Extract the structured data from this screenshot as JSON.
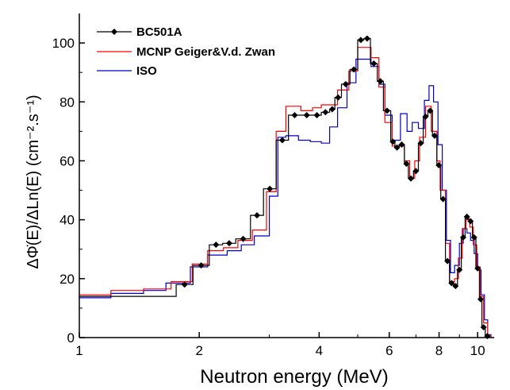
{
  "chart_data": {
    "type": "line",
    "title": "",
    "xlabel": "Neutron energy (MeV)",
    "ylabel": "ΔΦ̇(E)/ΔLn(E) (cm⁻².s⁻¹)",
    "x_scale": "log",
    "xlim": [
      1,
      11
    ],
    "ylim": [
      0,
      110
    ],
    "x_ticks": [
      1,
      2,
      4,
      6,
      8,
      10
    ],
    "y_ticks": [
      0,
      20,
      40,
      60,
      80,
      100
    ],
    "x_tick_labels": [
      "1",
      "2",
      "4",
      "6",
      "8",
      "10"
    ],
    "y_tick_labels": [
      "0",
      "20",
      "40",
      "60",
      "80",
      "100"
    ],
    "legend_position": "top-left",
    "series": [
      {
        "name": "BC501A",
        "color": "#000000",
        "style": "step-with-diamond-markers",
        "points": [
          [
            1.75,
            18
          ],
          [
            1.93,
            24.5
          ],
          [
            2.12,
            31.5
          ],
          [
            2.29,
            32
          ],
          [
            2.47,
            33.5
          ],
          [
            2.69,
            41.5
          ],
          [
            2.9,
            50.5
          ],
          [
            3.12,
            67
          ],
          [
            3.35,
            75.5
          ],
          [
            3.6,
            75.5
          ],
          [
            3.85,
            75.5
          ],
          [
            4.05,
            76.5
          ],
          [
            4.25,
            77.5
          ],
          [
            4.38,
            81.5
          ],
          [
            4.55,
            86
          ],
          [
            4.78,
            91
          ],
          [
            5.0,
            101
          ],
          [
            5.18,
            101.5
          ],
          [
            5.38,
            93
          ],
          [
            5.6,
            87
          ],
          [
            5.8,
            77
          ],
          [
            6.05,
            66.5
          ],
          [
            6.2,
            64.5
          ],
          [
            6.35,
            65.5
          ],
          [
            6.55,
            59
          ],
          [
            6.7,
            54
          ],
          [
            6.9,
            56.5
          ],
          [
            7.1,
            66
          ],
          [
            7.3,
            75
          ],
          [
            7.5,
            77
          ],
          [
            7.7,
            68.5
          ],
          [
            7.9,
            58.5
          ],
          [
            8.08,
            47
          ],
          [
            8.3,
            26
          ],
          [
            8.5,
            18.5
          ],
          [
            8.7,
            17.5
          ],
          [
            8.9,
            23
          ],
          [
            9.1,
            34
          ],
          [
            9.3,
            41
          ],
          [
            9.5,
            39.5
          ],
          [
            9.7,
            34
          ],
          [
            9.9,
            23.5
          ],
          [
            10.1,
            13
          ],
          [
            10.25,
            3.5
          ],
          [
            10.45,
            0.5
          ]
        ],
        "steps": [
          [
            1.0,
            14
          ],
          [
            1.75,
            18
          ],
          [
            1.93,
            24.5
          ],
          [
            2.12,
            31.5
          ],
          [
            2.29,
            32
          ],
          [
            2.47,
            33.5
          ],
          [
            2.69,
            41.5
          ],
          [
            2.9,
            50.5
          ],
          [
            3.12,
            67
          ],
          [
            3.35,
            75.5
          ],
          [
            3.6,
            75.5
          ],
          [
            3.85,
            75.5
          ],
          [
            4.05,
            76.5
          ],
          [
            4.25,
            77.5
          ],
          [
            4.38,
            81.5
          ],
          [
            4.55,
            86
          ],
          [
            4.78,
            91
          ],
          [
            5.0,
            101
          ],
          [
            5.18,
            101.5
          ],
          [
            5.38,
            93
          ],
          [
            5.6,
            87
          ],
          [
            5.8,
            77
          ],
          [
            6.05,
            66.5
          ],
          [
            6.2,
            64.5
          ],
          [
            6.35,
            65.5
          ],
          [
            6.55,
            59
          ],
          [
            6.7,
            54
          ],
          [
            6.9,
            56.5
          ],
          [
            7.1,
            66
          ],
          [
            7.3,
            75
          ],
          [
            7.5,
            77
          ],
          [
            7.7,
            68.5
          ],
          [
            7.9,
            58.5
          ],
          [
            8.08,
            47
          ],
          [
            8.3,
            26
          ],
          [
            8.5,
            18.5
          ],
          [
            8.7,
            17.5
          ],
          [
            8.9,
            23
          ],
          [
            9.1,
            34
          ],
          [
            9.3,
            41
          ],
          [
            9.5,
            39.5
          ],
          [
            9.7,
            34
          ],
          [
            9.9,
            23.5
          ],
          [
            10.1,
            13
          ],
          [
            10.25,
            3.5
          ],
          [
            10.45,
            0.5
          ],
          [
            10.7,
            0
          ]
        ]
      },
      {
        "name": "MCNP Geiger&V.d. Zwan",
        "color": "#ff0000",
        "style": "step",
        "steps": [
          [
            1.0,
            14.5
          ],
          [
            1.2,
            16
          ],
          [
            1.45,
            16.5
          ],
          [
            1.7,
            19
          ],
          [
            1.92,
            25
          ],
          [
            2.1,
            29.5
          ],
          [
            2.3,
            30.5
          ],
          [
            2.5,
            33
          ],
          [
            2.72,
            36.5
          ],
          [
            2.95,
            49.5
          ],
          [
            3.12,
            70
          ],
          [
            3.3,
            78.5
          ],
          [
            3.6,
            77
          ],
          [
            3.85,
            78
          ],
          [
            4.05,
            79
          ],
          [
            4.25,
            79
          ],
          [
            4.45,
            84
          ],
          [
            4.75,
            90.5
          ],
          [
            5.0,
            98.5
          ],
          [
            5.4,
            95
          ],
          [
            5.65,
            85
          ],
          [
            5.85,
            73
          ],
          [
            6.1,
            65
          ],
          [
            6.35,
            65
          ],
          [
            6.55,
            60
          ],
          [
            6.75,
            54
          ],
          [
            6.95,
            60
          ],
          [
            7.15,
            68
          ],
          [
            7.4,
            78.5
          ],
          [
            7.65,
            70
          ],
          [
            7.9,
            60
          ],
          [
            8.05,
            50
          ],
          [
            8.3,
            32
          ],
          [
            8.5,
            19
          ],
          [
            8.75,
            20
          ],
          [
            8.95,
            27
          ],
          [
            9.15,
            37
          ],
          [
            9.35,
            40
          ],
          [
            9.55,
            37.5
          ],
          [
            9.75,
            31.5
          ],
          [
            9.95,
            24
          ],
          [
            10.15,
            14
          ],
          [
            10.35,
            5
          ],
          [
            10.6,
            0.5
          ],
          [
            10.8,
            0
          ]
        ]
      },
      {
        "name": "ISO",
        "color": "#0000cc",
        "style": "step",
        "steps": [
          [
            1.0,
            13.5
          ],
          [
            1.2,
            15
          ],
          [
            1.45,
            16
          ],
          [
            1.65,
            18.5
          ],
          [
            1.9,
            24
          ],
          [
            2.1,
            28
          ],
          [
            2.35,
            29.5
          ],
          [
            2.55,
            31.5
          ],
          [
            2.75,
            34.5
          ],
          [
            3.0,
            48
          ],
          [
            3.15,
            68
          ],
          [
            3.3,
            68.5
          ],
          [
            3.55,
            67
          ],
          [
            3.8,
            66.5
          ],
          [
            4.05,
            66
          ],
          [
            4.25,
            71.5
          ],
          [
            4.45,
            78
          ],
          [
            4.7,
            86.5
          ],
          [
            4.95,
            94.5
          ],
          [
            5.4,
            92
          ],
          [
            5.65,
            86
          ],
          [
            5.85,
            75.5
          ],
          [
            6.1,
            67
          ],
          [
            6.4,
            76
          ],
          [
            6.65,
            70
          ],
          [
            6.85,
            73
          ],
          [
            7.1,
            71
          ],
          [
            7.35,
            80.5
          ],
          [
            7.55,
            85.5
          ],
          [
            7.75,
            80
          ],
          [
            7.95,
            65.5
          ],
          [
            8.15,
            50
          ],
          [
            8.35,
            33
          ],
          [
            8.55,
            22
          ],
          [
            8.75,
            24.5
          ],
          [
            9.0,
            32
          ],
          [
            9.2,
            37
          ],
          [
            9.4,
            35.5
          ],
          [
            9.6,
            33
          ],
          [
            9.8,
            28.5
          ],
          [
            10.0,
            23
          ],
          [
            10.2,
            14.5
          ],
          [
            10.4,
            6
          ],
          [
            10.6,
            1
          ],
          [
            10.8,
            0
          ]
        ]
      }
    ]
  }
}
